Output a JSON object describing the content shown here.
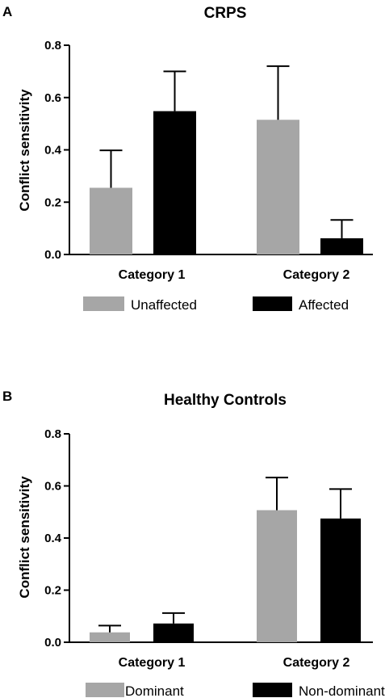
{
  "chart_data": [
    {
      "type": "bar",
      "panel": "A",
      "title": "CRPS",
      "ylabel": "Conflict sensitivity",
      "xlabel": "",
      "ylim": [
        0,
        0.8
      ],
      "yticks": [
        "0.0",
        "0.2",
        "0.4",
        "0.6",
        "0.8"
      ],
      "ytick_values": [
        0,
        0.2,
        0.4,
        0.6,
        0.8
      ],
      "categories": [
        "Category 1",
        "Category 2"
      ],
      "legend_position": "bottom",
      "grid": false,
      "series": [
        {
          "name": "Unaffected",
          "color": "#a6a6a6",
          "values": [
            0.255,
            0.515
          ],
          "error": [
            0.143,
            0.205
          ]
        },
        {
          "name": "Affected",
          "color": "#000000",
          "values": [
            0.548,
            0.062
          ],
          "error": [
            0.152,
            0.07
          ]
        }
      ]
    },
    {
      "type": "bar",
      "panel": "B",
      "title": "Healthy Controls",
      "ylabel": "Conflict sensitivity",
      "xlabel": "",
      "ylim": [
        0,
        0.8
      ],
      "yticks": [
        "0.0",
        "0.2",
        "0.4",
        "0.6",
        "0.8"
      ],
      "ytick_values": [
        0,
        0.2,
        0.4,
        0.6,
        0.8
      ],
      "categories": [
        "Category 1",
        "Category 2"
      ],
      "legend_position": "bottom",
      "grid": false,
      "series": [
        {
          "name": "Dominant",
          "color": "#a6a6a6",
          "values": [
            0.038,
            0.507
          ],
          "error": [
            0.026,
            0.125
          ]
        },
        {
          "name": "Non-dominant",
          "color": "#000000",
          "values": [
            0.072,
            0.475
          ],
          "error": [
            0.04,
            0.113
          ]
        }
      ]
    }
  ]
}
